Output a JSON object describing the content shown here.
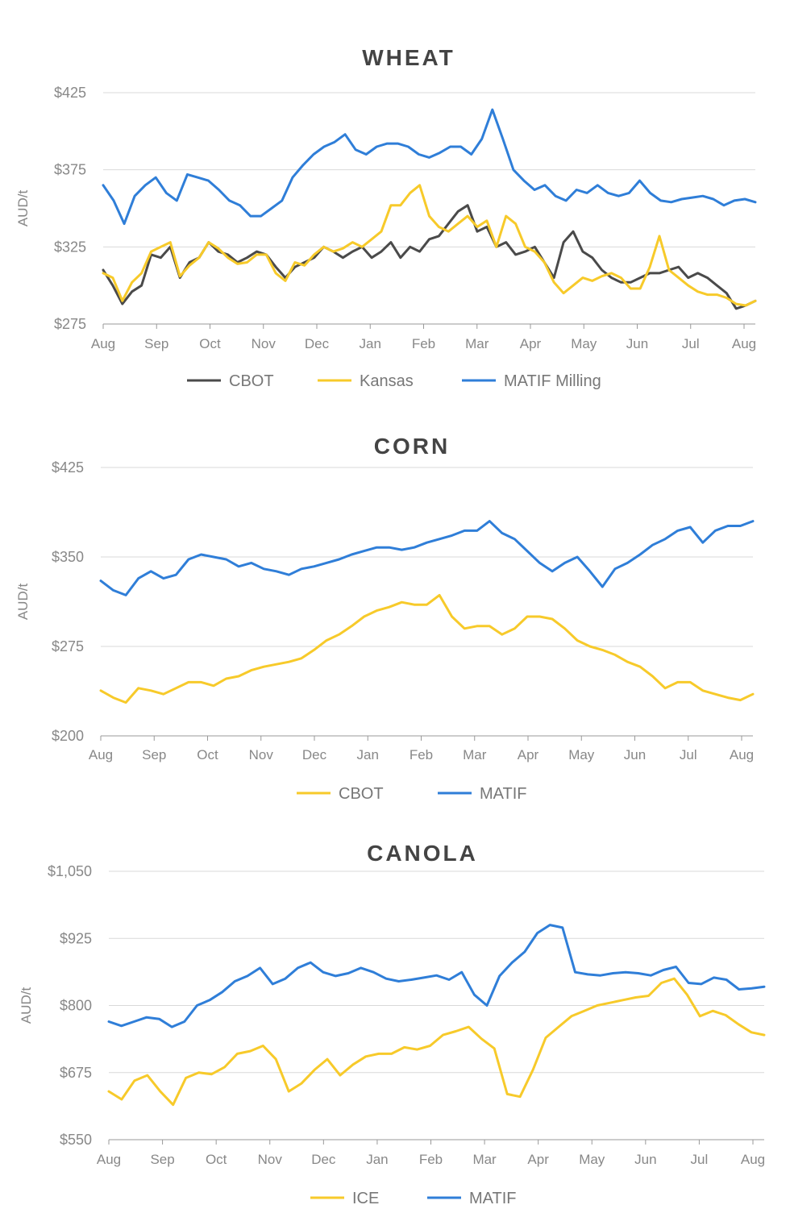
{
  "colors": {
    "black": "#4a4a4a",
    "yellow": "#f7ca2a",
    "blue": "#2f7ed8"
  },
  "chart_data": [
    {
      "type": "line",
      "title": "WHEAT",
      "ylabel": "AUD/t",
      "ylim": [
        275,
        425
      ],
      "y_ticks": [
        275,
        325,
        375,
        425
      ],
      "y_tick_labels": [
        "$275",
        "$325",
        "$375",
        "$425"
      ],
      "x_ticks": [
        "Aug",
        "Sep",
        "Oct",
        "Nov",
        "Dec",
        "Jan",
        "Feb",
        "Mar",
        "Apr",
        "May",
        "Jun",
        "Jul",
        "Aug"
      ],
      "legend_position": "bottom",
      "series": [
        {
          "name": "CBOT",
          "color": "black",
          "values": [
            310,
            300,
            288,
            296,
            300,
            320,
            318,
            325,
            305,
            315,
            318,
            328,
            322,
            320,
            315,
            318,
            322,
            320,
            312,
            305,
            312,
            315,
            318,
            325,
            322,
            318,
            322,
            325,
            318,
            322,
            328,
            318,
            325,
            322,
            330,
            332,
            340,
            348,
            352,
            335,
            338,
            325,
            328,
            320,
            322,
            325,
            315,
            305,
            328,
            335,
            322,
            318,
            310,
            305,
            302,
            302,
            305,
            308,
            308,
            310,
            312,
            305,
            308,
            305,
            300,
            295,
            285,
            287,
            290
          ]
        },
        {
          "name": "Kansas",
          "color": "yellow",
          "values": [
            308,
            305,
            290,
            302,
            308,
            322,
            325,
            328,
            306,
            313,
            318,
            328,
            324,
            318,
            314,
            315,
            320,
            320,
            308,
            303,
            315,
            313,
            320,
            325,
            322,
            324,
            328,
            325,
            330,
            335,
            352,
            352,
            360,
            365,
            345,
            338,
            335,
            340,
            345,
            338,
            342,
            325,
            345,
            340,
            325,
            322,
            315,
            302,
            295,
            300,
            305,
            303,
            306,
            308,
            305,
            298,
            298,
            312,
            332,
            310,
            305,
            300,
            296,
            294,
            294,
            292,
            288,
            287,
            290
          ]
        },
        {
          "name": "MATIF Milling",
          "color": "blue",
          "values": [
            365,
            355,
            340,
            358,
            365,
            370,
            360,
            355,
            372,
            370,
            368,
            362,
            355,
            352,
            345,
            345,
            350,
            355,
            370,
            378,
            385,
            390,
            393,
            398,
            388,
            385,
            390,
            392,
            392,
            390,
            385,
            383,
            386,
            390,
            390,
            385,
            395,
            414,
            395,
            375,
            368,
            362,
            365,
            358,
            355,
            362,
            360,
            365,
            360,
            358,
            360,
            368,
            360,
            355,
            354,
            356,
            357,
            358,
            356,
            352,
            355,
            356,
            354
          ]
        }
      ]
    },
    {
      "type": "line",
      "title": "CORN",
      "ylabel": "AUD/t",
      "ylim": [
        200,
        425
      ],
      "y_ticks": [
        200,
        275,
        350,
        425
      ],
      "y_tick_labels": [
        "$200",
        "$275",
        "$350",
        "$425"
      ],
      "x_ticks": [
        "Aug",
        "Sep",
        "Oct",
        "Nov",
        "Dec",
        "Jan",
        "Feb",
        "Mar",
        "Apr",
        "May",
        "Jun",
        "Jul",
        "Aug"
      ],
      "legend_position": "bottom",
      "series": [
        {
          "name": "CBOT",
          "color": "yellow",
          "values": [
            238,
            232,
            228,
            240,
            238,
            235,
            240,
            245,
            245,
            242,
            248,
            250,
            255,
            258,
            260,
            262,
            265,
            272,
            280,
            285,
            292,
            300,
            305,
            308,
            312,
            310,
            310,
            318,
            300,
            290,
            292,
            292,
            285,
            290,
            300,
            300,
            298,
            290,
            280,
            275,
            272,
            268,
            262,
            258,
            250,
            240,
            245,
            245,
            238,
            235,
            232,
            230,
            235
          ]
        },
        {
          "name": "MATIF",
          "color": "blue",
          "values": [
            330,
            322,
            318,
            332,
            338,
            332,
            335,
            348,
            352,
            350,
            348,
            342,
            345,
            340,
            338,
            335,
            340,
            342,
            345,
            348,
            352,
            355,
            358,
            358,
            356,
            358,
            362,
            365,
            368,
            372,
            372,
            380,
            370,
            365,
            355,
            345,
            338,
            345,
            350,
            338,
            325,
            340,
            345,
            352,
            360,
            365,
            372,
            375,
            362,
            372,
            376,
            376,
            380
          ]
        }
      ]
    },
    {
      "type": "line",
      "title": "CANOLA",
      "ylabel": "AUD/t",
      "ylim": [
        550,
        1050
      ],
      "y_ticks": [
        550,
        675,
        800,
        925,
        1050
      ],
      "y_tick_labels": [
        "$550",
        "$675",
        "$800",
        "$925",
        "$1,050"
      ],
      "x_ticks": [
        "Aug",
        "Sep",
        "Oct",
        "Nov",
        "Dec",
        "Jan",
        "Feb",
        "Mar",
        "Apr",
        "May",
        "Jun",
        "Jul",
        "Aug"
      ],
      "legend_position": "bottom",
      "series": [
        {
          "name": "ICE",
          "color": "yellow",
          "values": [
            640,
            625,
            660,
            670,
            640,
            615,
            665,
            675,
            672,
            685,
            710,
            715,
            725,
            700,
            640,
            655,
            680,
            700,
            670,
            690,
            705,
            710,
            710,
            722,
            718,
            725,
            745,
            752,
            760,
            738,
            720,
            635,
            630,
            680,
            740,
            760,
            780,
            790,
            800,
            805,
            810,
            815,
            818,
            842,
            850,
            820,
            780,
            790,
            782,
            765,
            750,
            745
          ]
        },
        {
          "name": "MATIF",
          "color": "blue",
          "values": [
            770,
            762,
            770,
            778,
            775,
            760,
            770,
            800,
            810,
            825,
            845,
            855,
            870,
            840,
            850,
            870,
            880,
            862,
            855,
            860,
            870,
            862,
            850,
            845,
            848,
            852,
            856,
            848,
            862,
            820,
            800,
            855,
            880,
            900,
            935,
            950,
            945,
            862,
            858,
            856,
            860,
            862,
            860,
            856,
            866,
            872,
            842,
            840,
            852,
            848,
            830,
            832,
            835
          ]
        }
      ]
    }
  ],
  "legends": [
    {
      "items": [
        {
          "label": "CBOT",
          "color": "black"
        },
        {
          "label": "Kansas",
          "color": "yellow"
        },
        {
          "label": "MATIF Milling",
          "color": "blue"
        }
      ]
    },
    {
      "items": [
        {
          "label": "CBOT",
          "color": "yellow"
        },
        {
          "label": "MATIF",
          "color": "blue"
        }
      ]
    },
    {
      "items": [
        {
          "label": "ICE",
          "color": "yellow"
        },
        {
          "label": "MATIF",
          "color": "blue"
        }
      ]
    }
  ]
}
